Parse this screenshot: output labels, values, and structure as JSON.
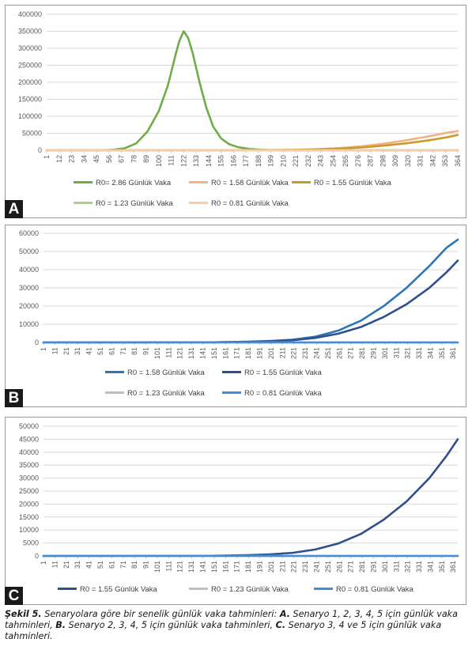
{
  "chart_data": [
    {
      "type": "line",
      "panel_label": "A",
      "x_range": [
        1,
        364
      ],
      "ylim": [
        0,
        400000
      ],
      "yticks": [
        0,
        50000,
        100000,
        150000,
        200000,
        250000,
        300000,
        350000,
        400000
      ],
      "xticks": [
        1,
        12,
        23,
        34,
        45,
        56,
        67,
        78,
        89,
        100,
        111,
        122,
        133,
        144,
        155,
        166,
        177,
        188,
        199,
        210,
        221,
        232,
        243,
        254,
        265,
        276,
        287,
        298,
        309,
        320,
        331,
        342,
        353,
        364
      ],
      "grid": true,
      "legend_position": "bottom",
      "series": [
        {
          "name": "R0= 2.86 Günlük Vaka",
          "color": "#70ad47",
          "points": [
            [
              1,
              0
            ],
            [
              50,
              200
            ],
            [
              60,
              1500
            ],
            [
              70,
              6000
            ],
            [
              80,
              20000
            ],
            [
              90,
              55000
            ],
            [
              100,
              115000
            ],
            [
              108,
              190000
            ],
            [
              114,
              270000
            ],
            [
              118,
              320000
            ],
            [
              122,
              350000
            ],
            [
              126,
              330000
            ],
            [
              130,
              285000
            ],
            [
              136,
              200000
            ],
            [
              142,
              125000
            ],
            [
              148,
              70000
            ],
            [
              155,
              35000
            ],
            [
              162,
              18000
            ],
            [
              170,
              9000
            ],
            [
              180,
              4000
            ],
            [
              190,
              1500
            ],
            [
              200,
              500
            ],
            [
              215,
              100
            ],
            [
              364,
              0
            ]
          ]
        },
        {
          "name": "R0 = 1.58 Günlük Vaka",
          "color": "#f4b183",
          "points": [
            [
              1,
              0
            ],
            [
              150,
              100
            ],
            [
              180,
              400
            ],
            [
              200,
              800
            ],
            [
              220,
              1500
            ],
            [
              240,
              3200
            ],
            [
              260,
              6500
            ],
            [
              280,
              12000
            ],
            [
              300,
              20000
            ],
            [
              320,
              30000
            ],
            [
              340,
              42000
            ],
            [
              355,
              52000
            ],
            [
              364,
              56500
            ]
          ]
        },
        {
          "name": "R0 = 1.55 Günlük Vaka",
          "color": "#c99a2e",
          "points": [
            [
              1,
              0
            ],
            [
              150,
              80
            ],
            [
              180,
              300
            ],
            [
              200,
              600
            ],
            [
              220,
              1200
            ],
            [
              240,
              2500
            ],
            [
              260,
              4800
            ],
            [
              280,
              8500
            ],
            [
              300,
              14000
            ],
            [
              320,
              21000
            ],
            [
              340,
              30000
            ],
            [
              355,
              38500
            ],
            [
              364,
              45000
            ]
          ]
        },
        {
          "name": "R0 = 1.23 Günlük Vaka",
          "color": "#a9d18e",
          "points": [
            [
              1,
              0
            ],
            [
              364,
              0
            ]
          ]
        },
        {
          "name": "R0 = 0.81 Günlük Vaka",
          "color": "#f8cbad",
          "points": [
            [
              1,
              0
            ],
            [
              364,
              0
            ]
          ]
        }
      ],
      "legend": [
        {
          "label": "R0= 2.86 Günlük Vaka",
          "color": "#70ad47"
        },
        {
          "label": "R0 = 1.58 Günlük Vaka",
          "color": "#f4b183"
        },
        {
          "label": "R0 = 1.55 Günlük Vaka",
          "color": "#c99a2e"
        },
        {
          "label": "R0 = 1.23 Günlük Vaka",
          "color": "#a9d18e"
        },
        {
          "label": "R0 = 0.81 Günlük Vaka",
          "color": "#f8cbad"
        }
      ]
    },
    {
      "type": "line",
      "panel_label": "B",
      "x_range": [
        1,
        365
      ],
      "ylim": [
        0,
        60000
      ],
      "yticks": [
        0,
        10000,
        20000,
        30000,
        40000,
        50000,
        60000
      ],
      "xticks": [
        1,
        11,
        21,
        31,
        41,
        51,
        61,
        71,
        81,
        91,
        101,
        111,
        121,
        131,
        141,
        151,
        161,
        171,
        181,
        191,
        201,
        211,
        221,
        231,
        241,
        251,
        261,
        271,
        281,
        291,
        301,
        311,
        321,
        331,
        341,
        351,
        361
      ],
      "grid": true,
      "legend_position": "bottom",
      "series": [
        {
          "name": "R0 = 1.58 Günlük Vaka",
          "color": "#2e75b6",
          "points": [
            [
              1,
              0
            ],
            [
              150,
              100
            ],
            [
              180,
              400
            ],
            [
              200,
              800
            ],
            [
              220,
              1500
            ],
            [
              240,
              3200
            ],
            [
              260,
              6500
            ],
            [
              280,
              12000
            ],
            [
              300,
              20000
            ],
            [
              320,
              30000
            ],
            [
              340,
              42000
            ],
            [
              355,
              52000
            ],
            [
              365,
              56500
            ]
          ]
        },
        {
          "name": "R0 = 1.55 Günlük Vaka",
          "color": "#2f4f8f",
          "points": [
            [
              1,
              0
            ],
            [
              150,
              80
            ],
            [
              180,
              300
            ],
            [
              200,
              600
            ],
            [
              220,
              1200
            ],
            [
              240,
              2500
            ],
            [
              260,
              4800
            ],
            [
              280,
              8500
            ],
            [
              300,
              14000
            ],
            [
              320,
              21000
            ],
            [
              340,
              30000
            ],
            [
              355,
              38500
            ],
            [
              365,
              45000
            ]
          ]
        },
        {
          "name": "R0 = 1.23 Günlük Vaka",
          "color": "#bfbfbf",
          "points": [
            [
              1,
              0
            ],
            [
              365,
              0
            ]
          ]
        },
        {
          "name": "R0 = 0.81 Günlük Vaka",
          "color": "#3f8ed8",
          "points": [
            [
              1,
              0
            ],
            [
              365,
              0
            ]
          ]
        }
      ],
      "legend": [
        {
          "label": "R0 = 1.58 Günlük Vaka",
          "color": "#2e75b6"
        },
        {
          "label": "R0 = 1.55 Günlük Vaka",
          "color": "#2f4f8f"
        },
        {
          "label": "R0 = 1.23 Günlük Vaka",
          "color": "#bfbfbf"
        },
        {
          "label": "R0 = 0.81 Günlük Vaka",
          "color": "#3f8ed8"
        }
      ]
    },
    {
      "type": "line",
      "panel_label": "C",
      "x_range": [
        1,
        365
      ],
      "ylim": [
        0,
        50000
      ],
      "yticks": [
        0,
        5000,
        10000,
        15000,
        20000,
        25000,
        30000,
        35000,
        40000,
        45000,
        50000
      ],
      "xticks": [
        1,
        11,
        21,
        31,
        41,
        51,
        61,
        71,
        81,
        91,
        101,
        111,
        121,
        131,
        141,
        151,
        161,
        171,
        181,
        191,
        201,
        211,
        221,
        231,
        241,
        251,
        261,
        271,
        281,
        291,
        301,
        311,
        321,
        331,
        341,
        351,
        361
      ],
      "grid": true,
      "legend_position": "bottom",
      "series": [
        {
          "name": "R0 = 1.55 Günlük Vaka",
          "color": "#2f4f8f",
          "points": [
            [
              1,
              0
            ],
            [
              150,
              80
            ],
            [
              180,
              300
            ],
            [
              200,
              600
            ],
            [
              220,
              1200
            ],
            [
              240,
              2500
            ],
            [
              260,
              4800
            ],
            [
              280,
              8500
            ],
            [
              300,
              14000
            ],
            [
              320,
              21000
            ],
            [
              340,
              30000
            ],
            [
              355,
              38500
            ],
            [
              365,
              45000
            ]
          ]
        },
        {
          "name": "R0 = 1.23 Günlük Vaka",
          "color": "#bfbfbf",
          "points": [
            [
              1,
              0
            ],
            [
              365,
              0
            ]
          ]
        },
        {
          "name": "R0 = 0.81 Günlük Vaka",
          "color": "#3f8ed8",
          "points": [
            [
              1,
              0
            ],
            [
              365,
              0
            ]
          ]
        }
      ],
      "legend": [
        {
          "label": "R0 = 1.55 Günlük Vaka",
          "color": "#2f4f8f"
        },
        {
          "label": "R0 = 1.23 Günlük Vaka",
          "color": "#bfbfbf"
        },
        {
          "label": "R0 = 0.81 Günlük Vaka",
          "color": "#3f8ed8"
        }
      ]
    }
  ],
  "caption": {
    "figure_label": "Şekil 5.",
    "intro": " Senaryolara göre bir senelik günlük vaka tahminleri: ",
    "a_label": "A.",
    "a_text": " Senaryo 1, 2, 3, 4, 5 için günlük vaka tahminleri, ",
    "b_label": "B.",
    "b_text": " Senaryo 2, 3, 4, 5 için günlük vaka tahminleri, ",
    "c_label": "C.",
    "c_text": " Senaryo 3, 4 ve 5 için günlük vaka tahminleri."
  }
}
